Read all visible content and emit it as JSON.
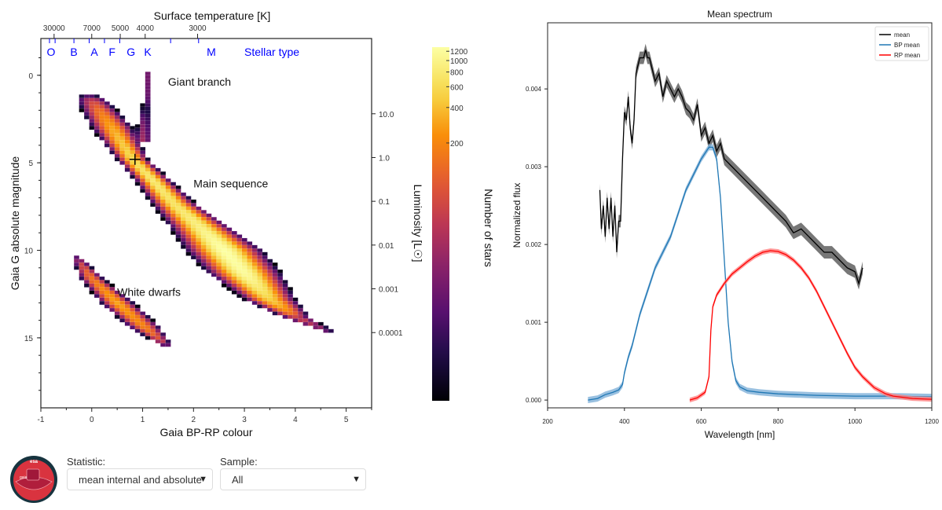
{
  "controls": {
    "statistic_label": "Statistic:",
    "statistic_value": "mean internal and absolute",
    "sample_label": "Sample:",
    "sample_value": "All",
    "logo_text": "esa",
    "logo_subtext": "gaia"
  },
  "chart_data": [
    {
      "type": "heatmap",
      "xlabel": "Gaia BP-RP colour",
      "ylabel": "Gaia G absolute magnitude",
      "xlim": [
        -1,
        5.5
      ],
      "ylim": [
        19,
        -2.1
      ],
      "xticks": [
        "-1",
        "0",
        "1",
        "2",
        "3",
        "4",
        "5"
      ],
      "yticks": [
        "0",
        "5",
        "10",
        "15"
      ],
      "top_axis": {
        "label": "Surface temperature [K]",
        "ticks": [
          {
            "label": "30000",
            "bp_rp": -0.74
          },
          {
            "label": "7000",
            "bp_rp": 0.0
          },
          {
            "label": "5000",
            "bp_rp": 0.56
          },
          {
            "label": "4000",
            "bp_rp": 1.05
          },
          {
            "label": "3000",
            "bp_rp": 2.08
          }
        ]
      },
      "stellar_type_axis": {
        "label": "Stellar type",
        "color": "#0000ff",
        "types": [
          {
            "label": "O",
            "bp_rp": -0.8
          },
          {
            "label": "B",
            "bp_rp": -0.35
          },
          {
            "label": "A",
            "bp_rp": 0.05
          },
          {
            "label": "F",
            "bp_rp": 0.4
          },
          {
            "label": "G",
            "bp_rp": 0.77
          },
          {
            "label": "K",
            "bp_rp": 1.1
          },
          {
            "label": "M",
            "bp_rp": 2.35
          }
        ],
        "tick_bp_rp": [
          -0.83,
          -0.72,
          -0.35,
          -0.05,
          0.25,
          0.55,
          1.55,
          2.1
        ]
      },
      "right_axis": {
        "label": "Luminosity [L☉]",
        "ticks": [
          {
            "label": "10.0",
            "G": 2.2
          },
          {
            "label": "1.0",
            "G": 4.7
          },
          {
            "label": "0.1",
            "G": 7.2
          },
          {
            "label": "0.01",
            "G": 9.7
          },
          {
            "label": "0.001",
            "G": 12.2
          },
          {
            "label": "0.0001",
            "G": 14.7
          }
        ]
      },
      "colorbar": {
        "label": "Number of stars",
        "scale": "log",
        "clim": [
          1.3,
          1300
        ],
        "ticks": [
          "1200",
          "1000",
          "800",
          "600",
          "400",
          "200"
        ],
        "colormap": "inferno"
      },
      "bin_size": {
        "bp_rp": 0.1,
        "G": 0.2
      },
      "marker": {
        "type": "crosshair",
        "bp_rp": 0.85,
        "G": 4.8
      },
      "series": [
        {
          "name": "Main sequence",
          "label_at": [
            2.0,
            6.4
          ],
          "ridge": [
            [
              0.0,
              1.4,
              0.22,
              40
            ],
            [
              0.4,
              3.0,
              0.25,
              300
            ],
            [
              0.8,
              4.8,
              0.18,
              600
            ],
            [
              1.2,
              6.0,
              0.2,
              800
            ],
            [
              1.6,
              7.3,
              0.25,
              700
            ],
            [
              2.1,
              8.6,
              0.33,
              900
            ],
            [
              2.6,
              10.0,
              0.42,
              1300
            ],
            [
              3.0,
              11.3,
              0.4,
              1200
            ],
            [
              3.5,
              12.8,
              0.3,
              500
            ],
            [
              4.0,
              13.8,
              0.2,
              60
            ],
            [
              4.7,
              14.7,
              0.1,
              4
            ]
          ]
        },
        {
          "name": "Giant branch",
          "label_at": [
            1.5,
            0.6
          ],
          "ridge": [
            [
              1.1,
              0.1,
              0.07,
              12
            ],
            [
              1.12,
              0.7,
              0.07,
              12
            ],
            [
              1.05,
              2.0,
              0.08,
              6
            ],
            [
              1.0,
              3.6,
              0.14,
              25
            ]
          ]
        },
        {
          "name": "White dwarfs",
          "label_at": [
            0.5,
            12.6
          ],
          "ridge": [
            [
              -0.3,
              10.4,
              0.08,
              8
            ],
            [
              0.0,
              11.6,
              0.15,
              150
            ],
            [
              0.5,
              13.0,
              0.2,
              300
            ],
            [
              1.0,
              14.3,
              0.2,
              200
            ],
            [
              1.45,
              15.4,
              0.1,
              15
            ]
          ]
        }
      ]
    },
    {
      "type": "line",
      "title": "Mean spectrum",
      "xlabel": "Wavelength [nm]",
      "ylabel": "Normalized flux",
      "xlim": [
        200,
        1200
      ],
      "ylim": [
        -0.0001,
        0.00485
      ],
      "xticks": [
        "200",
        "400",
        "600",
        "800",
        "1000",
        "1200"
      ],
      "yticks": [
        "0.000",
        "0.001",
        "0.002",
        "0.003",
        "0.004"
      ],
      "legend": "top-right",
      "series": [
        {
          "name": "mean",
          "color": "#000000",
          "band": "#555555",
          "uncertainty": 8e-05,
          "x": [
            336,
            340,
            345,
            350,
            355,
            360,
            365,
            370,
            375,
            380,
            385,
            390,
            395,
            400,
            405,
            410,
            415,
            420,
            425,
            430,
            440,
            450,
            455,
            460,
            465,
            470,
            480,
            490,
            500,
            510,
            520,
            530,
            540,
            550,
            560,
            570,
            580,
            590,
            600,
            610,
            620,
            630,
            640,
            650,
            660,
            680,
            700,
            720,
            740,
            760,
            780,
            800,
            820,
            840,
            860,
            880,
            900,
            920,
            940,
            960,
            980,
            1000,
            1010,
            1020
          ],
          "y": [
            0.0027,
            0.0022,
            0.0025,
            0.0021,
            0.0026,
            0.0022,
            0.0026,
            0.0021,
            0.0025,
            0.0019,
            0.0023,
            0.0023,
            0.0031,
            0.0037,
            0.0036,
            0.0039,
            0.0035,
            0.0033,
            0.0036,
            0.0042,
            0.0044,
            0.0044,
            0.0045,
            0.0044,
            0.0044,
            0.0043,
            0.0041,
            0.0042,
            0.0039,
            0.0041,
            0.004,
            0.0039,
            0.004,
            0.0039,
            0.00375,
            0.0037,
            0.0036,
            0.0038,
            0.0034,
            0.0035,
            0.0033,
            0.0034,
            0.0032,
            0.0033,
            0.0031,
            0.003,
            0.0029,
            0.0028,
            0.0027,
            0.0026,
            0.0025,
            0.0024,
            0.0023,
            0.00215,
            0.0022,
            0.0021,
            0.002,
            0.0019,
            0.0019,
            0.0018,
            0.0017,
            0.00165,
            0.0015,
            0.0017
          ]
        },
        {
          "name": "BP mean",
          "color": "#1f77b4",
          "band": "#7fb0d8",
          "uncertainty": 4e-05,
          "x": [
            305,
            330,
            350,
            370,
            385,
            395,
            400,
            410,
            420,
            440,
            460,
            480,
            500,
            520,
            540,
            560,
            580,
            600,
            620,
            630,
            640,
            650,
            660,
            670,
            680,
            690,
            700,
            720,
            750,
            800,
            850,
            900,
            1000,
            1100,
            1200
          ],
          "y": [
            0.0,
            2e-05,
            7e-05,
            0.0001,
            0.00013,
            0.0002,
            0.00035,
            0.00055,
            0.0007,
            0.0011,
            0.0014,
            0.0017,
            0.0019,
            0.0021,
            0.0024,
            0.0027,
            0.0029,
            0.0031,
            0.00325,
            0.00325,
            0.0031,
            0.0026,
            0.0018,
            0.001,
            0.0005,
            0.00025,
            0.00017,
            0.00012,
            0.0001,
            8e-05,
            7e-05,
            6e-05,
            5e-05,
            5e-05,
            4e-05
          ]
        },
        {
          "name": "RP mean",
          "color": "#ff0000",
          "band": "#ff8080",
          "uncertainty": 3e-05,
          "x": [
            570,
            590,
            610,
            620,
            625,
            630,
            640,
            660,
            680,
            700,
            720,
            740,
            760,
            780,
            800,
            820,
            840,
            860,
            880,
            900,
            920,
            940,
            960,
            980,
            1000,
            1020,
            1050,
            1080,
            1100,
            1150,
            1200
          ],
          "y": [
            0.0,
            3e-05,
            0.0001,
            0.0003,
            0.0009,
            0.0012,
            0.00135,
            0.0015,
            0.00162,
            0.0017,
            0.00178,
            0.00185,
            0.0019,
            0.00192,
            0.00191,
            0.00187,
            0.0018,
            0.0017,
            0.00157,
            0.0014,
            0.0012,
            0.001,
            0.0008,
            0.0006,
            0.00042,
            0.0003,
            0.00016,
            8e-05,
            5e-05,
            2e-05,
            1e-05
          ]
        }
      ]
    }
  ]
}
